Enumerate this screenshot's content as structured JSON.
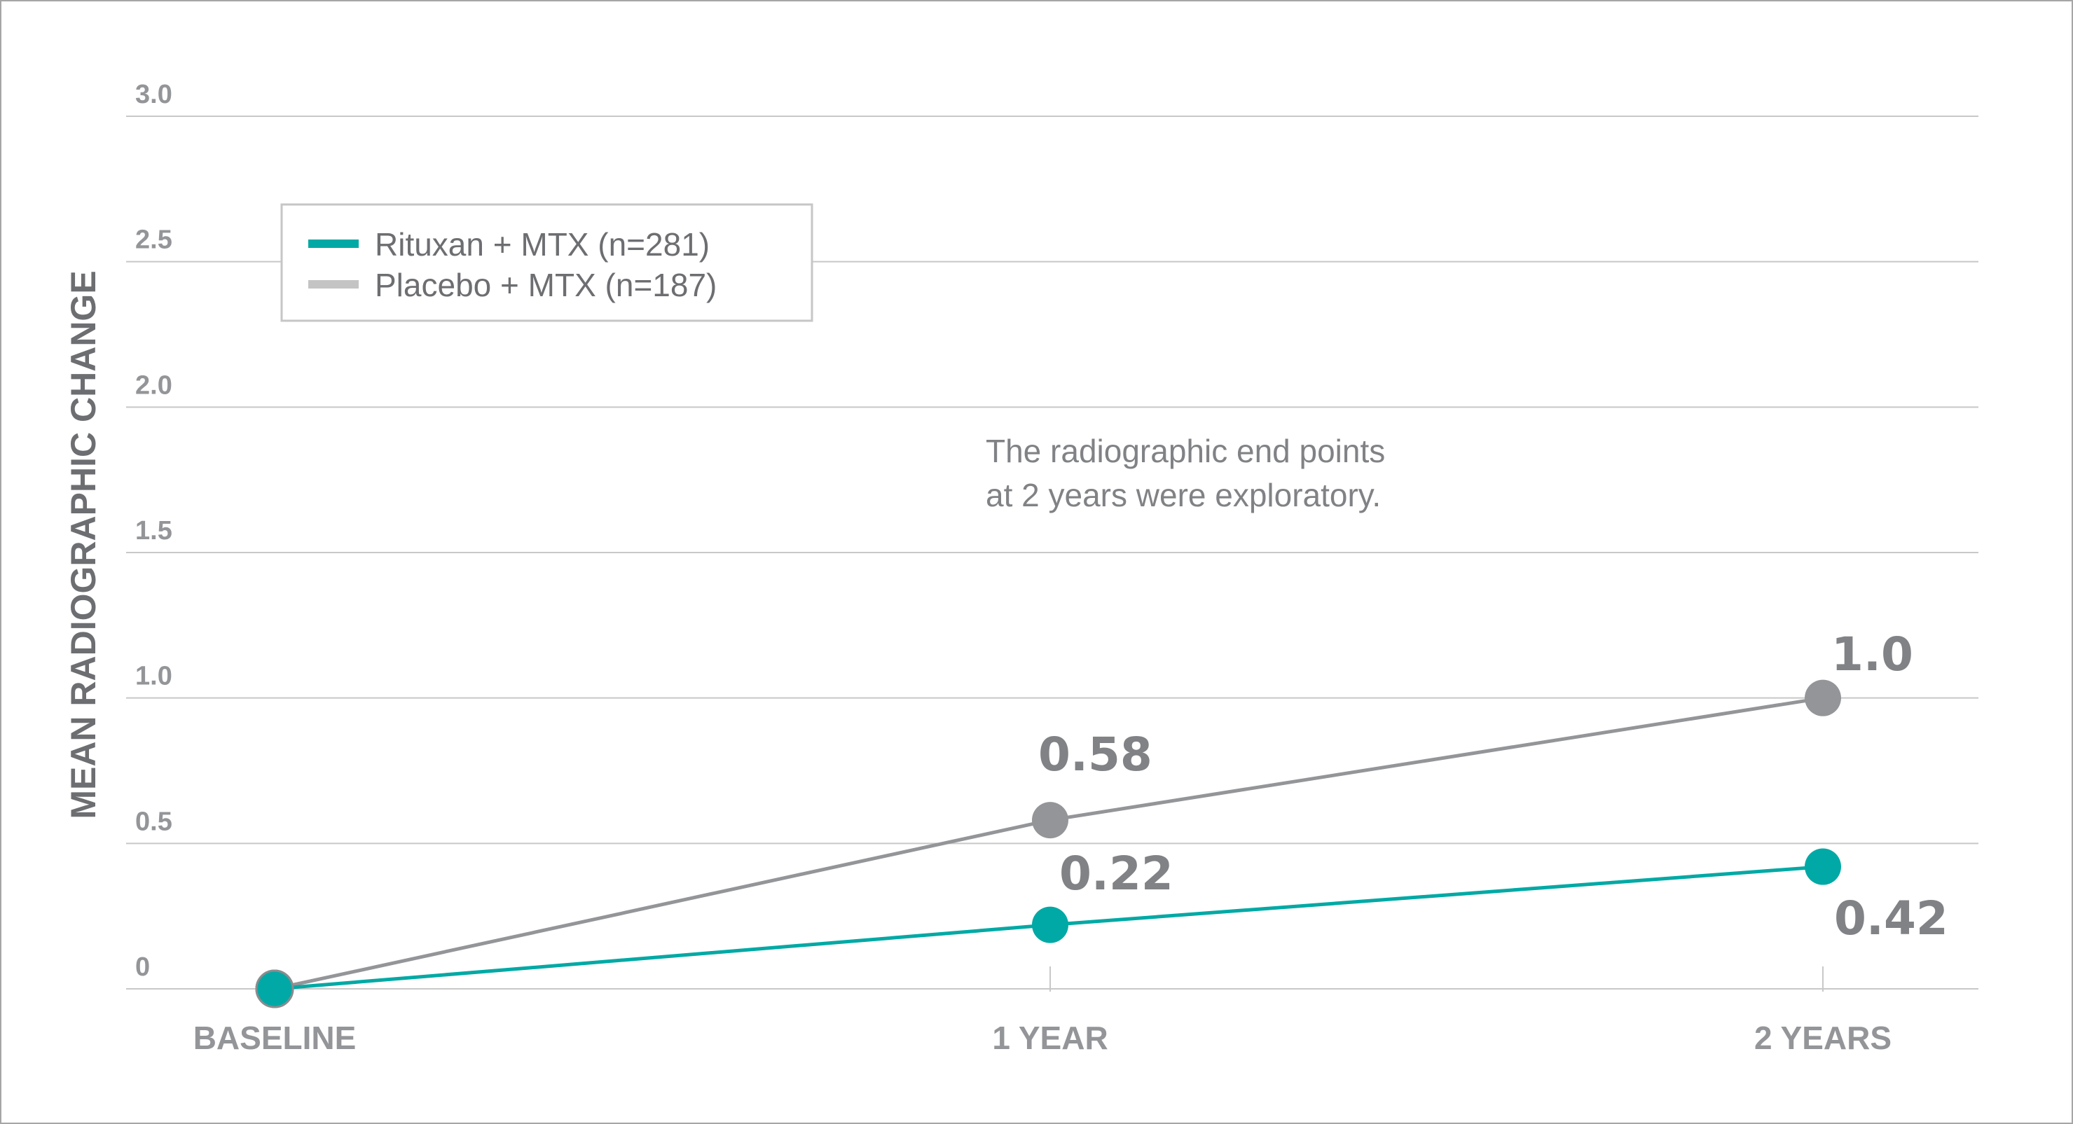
{
  "chart_data": {
    "type": "line",
    "ylabel": "MEAN RADIOGRAPHIC CHANGE",
    "categories": [
      "BASELINE",
      "1 YEAR",
      "2 YEARS"
    ],
    "ylim": [
      0,
      3.0
    ],
    "yticks": [
      "0",
      "0.5",
      "1.0",
      "1.5",
      "2.0",
      "2.5",
      "3.0"
    ],
    "grid": true,
    "legend_position": "top-left",
    "annotation": [
      "The radiographic end points",
      "at 2 years were exploratory."
    ],
    "series": [
      {
        "name": "Rituxan + MTX (n=281)",
        "color": "#00a9a5",
        "values": [
          0,
          0.22,
          0.42
        ],
        "labels": [
          "",
          "0.22",
          "0.42"
        ]
      },
      {
        "name": "Placebo + MTX (n=187)",
        "color": "#939598",
        "values": [
          0,
          0.58,
          1.0
        ],
        "labels": [
          "",
          "0.58",
          "1.0"
        ]
      }
    ],
    "legend_colors": [
      "#00a9a5",
      "#c4c4c4"
    ],
    "grid_color": "#c8c8c8",
    "axis_text_color": "#939598"
  }
}
